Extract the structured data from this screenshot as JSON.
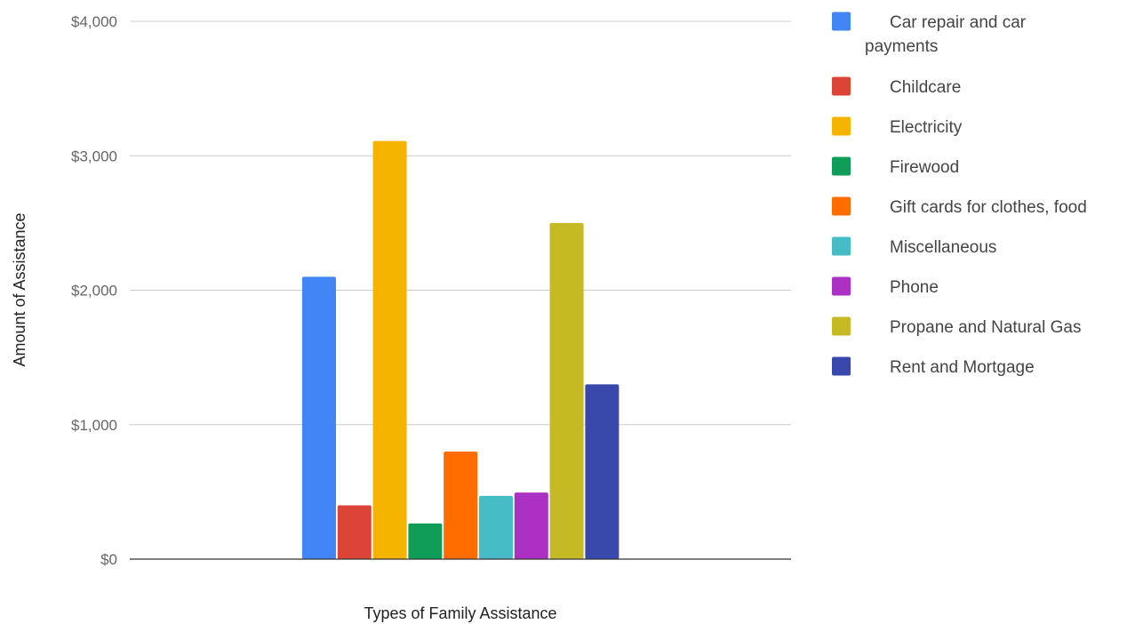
{
  "chart_data": {
    "type": "bar",
    "title": "",
    "xlabel": "Types of Family Assistance",
    "ylabel": "Amount of Assistance",
    "ylim": [
      0,
      4000
    ],
    "yticks": [
      0,
      1000,
      2000,
      3000,
      4000
    ],
    "ytick_labels": [
      "$0",
      "$1,000",
      "$2,000",
      "$3,000",
      "$4,000"
    ],
    "grid": true,
    "legend_position": "right",
    "categories": [
      ""
    ],
    "series": [
      {
        "name": "Car repair and car payments",
        "color": "#4285f4",
        "values": [
          2100
        ]
      },
      {
        "name": "Childcare",
        "color": "#db4437",
        "values": [
          400
        ]
      },
      {
        "name": "Electricity",
        "color": "#f4b400",
        "values": [
          3110
        ]
      },
      {
        "name": "Firewood",
        "color": "#0f9d58",
        "values": [
          265
        ]
      },
      {
        "name": "Gift cards for clothes, food",
        "color": "#ff6d00",
        "values": [
          800
        ]
      },
      {
        "name": "Miscellaneous",
        "color": "#46bdc6",
        "values": [
          470
        ]
      },
      {
        "name": "Phone",
        "color": "#ab30c4",
        "values": [
          495
        ]
      },
      {
        "name": "Propane and Natural Gas",
        "color": "#c5b924",
        "values": [
          2500
        ]
      },
      {
        "name": "Rent and Mortgage",
        "color": "#3949ab",
        "values": [
          1300
        ]
      }
    ]
  }
}
